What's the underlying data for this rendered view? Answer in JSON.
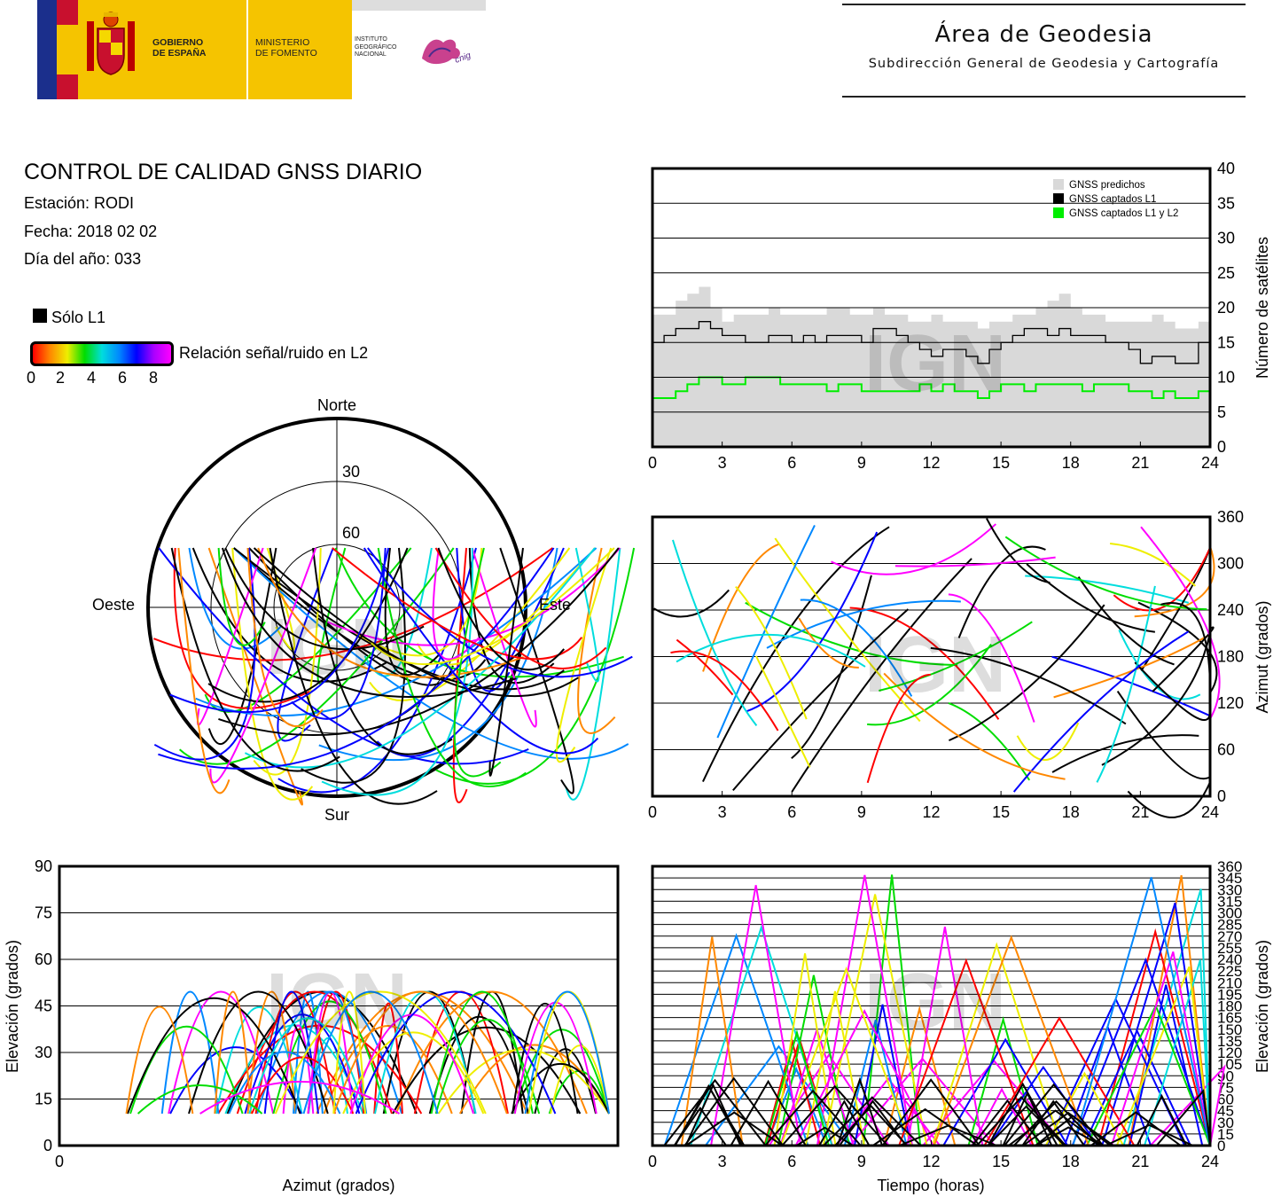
{
  "header": {
    "gov_line1": "GOBIERNO",
    "gov_line2": "DE ESPAÑA",
    "min_line1": "MINISTERIO",
    "min_line2": "DE FOMENTO",
    "inst_line1": "INSTITUTO",
    "inst_line2": "GEOGRÁFICO",
    "inst_line3": "NACIONAL",
    "cnig": "cnig",
    "area_title": "Área de Geodesia",
    "area_subtitle": "Subdirección General de Geodesia y Cartografía"
  },
  "info": {
    "title": "CONTROL DE CALIDAD GNSS DIARIO",
    "station": "Estación: RODI",
    "date": "Fecha: 2018 02 02",
    "doy": "Día del año: 033"
  },
  "legend": {
    "only_l1": "Sólo L1",
    "snr_label": "Relación señal/ruido en L2",
    "snr_ticks": [
      "0",
      "2",
      "4",
      "6",
      "8"
    ]
  },
  "colors": {
    "predicted": "#d9d9d9",
    "l1": "#000000",
    "l1l2": "#00ee00",
    "snr_scale": [
      "#ff0000",
      "#ff8800",
      "#eeee00",
      "#00dd00",
      "#00dddd",
      "#0088ff",
      "#0000ff",
      "#ff00ff"
    ]
  },
  "watermark": "IGN",
  "chart_data": [
    {
      "type": "line",
      "ylabel": "Número de satélites",
      "xlim": [
        0,
        24
      ],
      "ylim": [
        0,
        40
      ],
      "xticks": [
        "0",
        "3",
        "6",
        "9",
        "12",
        "15",
        "18",
        "21",
        "24"
      ],
      "yticks": [
        "0",
        "5",
        "10",
        "15",
        "20",
        "25",
        "30",
        "35",
        "40"
      ],
      "grid": "horizontal",
      "legend_position": "top-right",
      "x": [
        0,
        0.5,
        1,
        1.5,
        2,
        2.5,
        3,
        3.5,
        4,
        4.5,
        5,
        5.5,
        6,
        6.5,
        7,
        7.5,
        8,
        8.5,
        9,
        9.5,
        10,
        10.5,
        11,
        11.5,
        12,
        12.5,
        13,
        13.5,
        14,
        14.5,
        15,
        15.5,
        16,
        16.5,
        17,
        17.5,
        18,
        18.5,
        19,
        19.5,
        20,
        20.5,
        21,
        21.5,
        22,
        22.5,
        23,
        23.5
      ],
      "series": [
        {
          "name": "GNSS predichos",
          "values": [
            19,
            19,
            21,
            22,
            23,
            20,
            18,
            19,
            19,
            19,
            20,
            19,
            19,
            19,
            19,
            20,
            20,
            19,
            19,
            20,
            19,
            19,
            18,
            18,
            19,
            18,
            18,
            18,
            17,
            18,
            18,
            19,
            19,
            20,
            21,
            22,
            20,
            19,
            19,
            18,
            18,
            18,
            18,
            19,
            18,
            17,
            17,
            18
          ]
        },
        {
          "name": "GNSS captados L1",
          "values": [
            15,
            16,
            17,
            17,
            18,
            17,
            16,
            16,
            15,
            15,
            16,
            16,
            15,
            16,
            15,
            16,
            16,
            16,
            15,
            17,
            17,
            16,
            15,
            14,
            13,
            14,
            14,
            13,
            12,
            14,
            15,
            16,
            17,
            17,
            16,
            17,
            16,
            16,
            16,
            15,
            15,
            14,
            12,
            13,
            13,
            12,
            12,
            15
          ]
        },
        {
          "name": "GNSS captados L1 y L2",
          "values": [
            7,
            7,
            8,
            9,
            10,
            10,
            9,
            9,
            10,
            10,
            10,
            9,
            9,
            9,
            9,
            8,
            9,
            9,
            8,
            8,
            8,
            8,
            8,
            9,
            8,
            9,
            8,
            8,
            7,
            8,
            9,
            9,
            8,
            9,
            9,
            9,
            9,
            8,
            9,
            9,
            9,
            8,
            8,
            7,
            8,
            7,
            7,
            8
          ]
        }
      ]
    },
    {
      "type": "scatter",
      "ylabel": "Azimut (grados)",
      "xlim": [
        0,
        24
      ],
      "ylim": [
        0,
        360
      ],
      "xticks": [
        "0",
        "3",
        "6",
        "9",
        "12",
        "15",
        "18",
        "21",
        "24"
      ],
      "yticks": [
        "0",
        "60",
        "120",
        "180",
        "240",
        "300",
        "360"
      ],
      "grid": "horizontal"
    },
    {
      "type": "scatter",
      "subtype": "polar skyplot",
      "labels": {
        "north": "Norte",
        "south": "Sur",
        "east": "Este",
        "west": "Oeste"
      },
      "rings": [
        "30",
        "60"
      ]
    },
    {
      "type": "scatter",
      "xlabel": "Azimut (grados)",
      "ylabel": "Elevación (grados)",
      "xlim": [
        0,
        360
      ],
      "ylim": [
        0,
        90
      ],
      "xticks": [
        "0"
      ],
      "yticks": [
        "0",
        "15",
        "30",
        "45",
        "60",
        "75",
        "90"
      ],
      "grid": "horizontal"
    },
    {
      "type": "scatter",
      "xlabel": "Tiempo (horas)",
      "ylabel": "Elevación (grados)",
      "xlim": [
        0,
        24
      ],
      "ylim": [
        0,
        360
      ],
      "xticks": [
        "0",
        "3",
        "6",
        "9",
        "12",
        "15",
        "18",
        "21",
        "24"
      ],
      "yticks": [
        "0",
        "15",
        "30",
        "45",
        "60",
        "75",
        "90",
        "105",
        "120",
        "135",
        "150",
        "165",
        "180",
        "195",
        "210",
        "225",
        "240",
        "255",
        "270",
        "285",
        "300",
        "315",
        "330",
        "345",
        "360"
      ],
      "grid": "horizontal"
    }
  ]
}
